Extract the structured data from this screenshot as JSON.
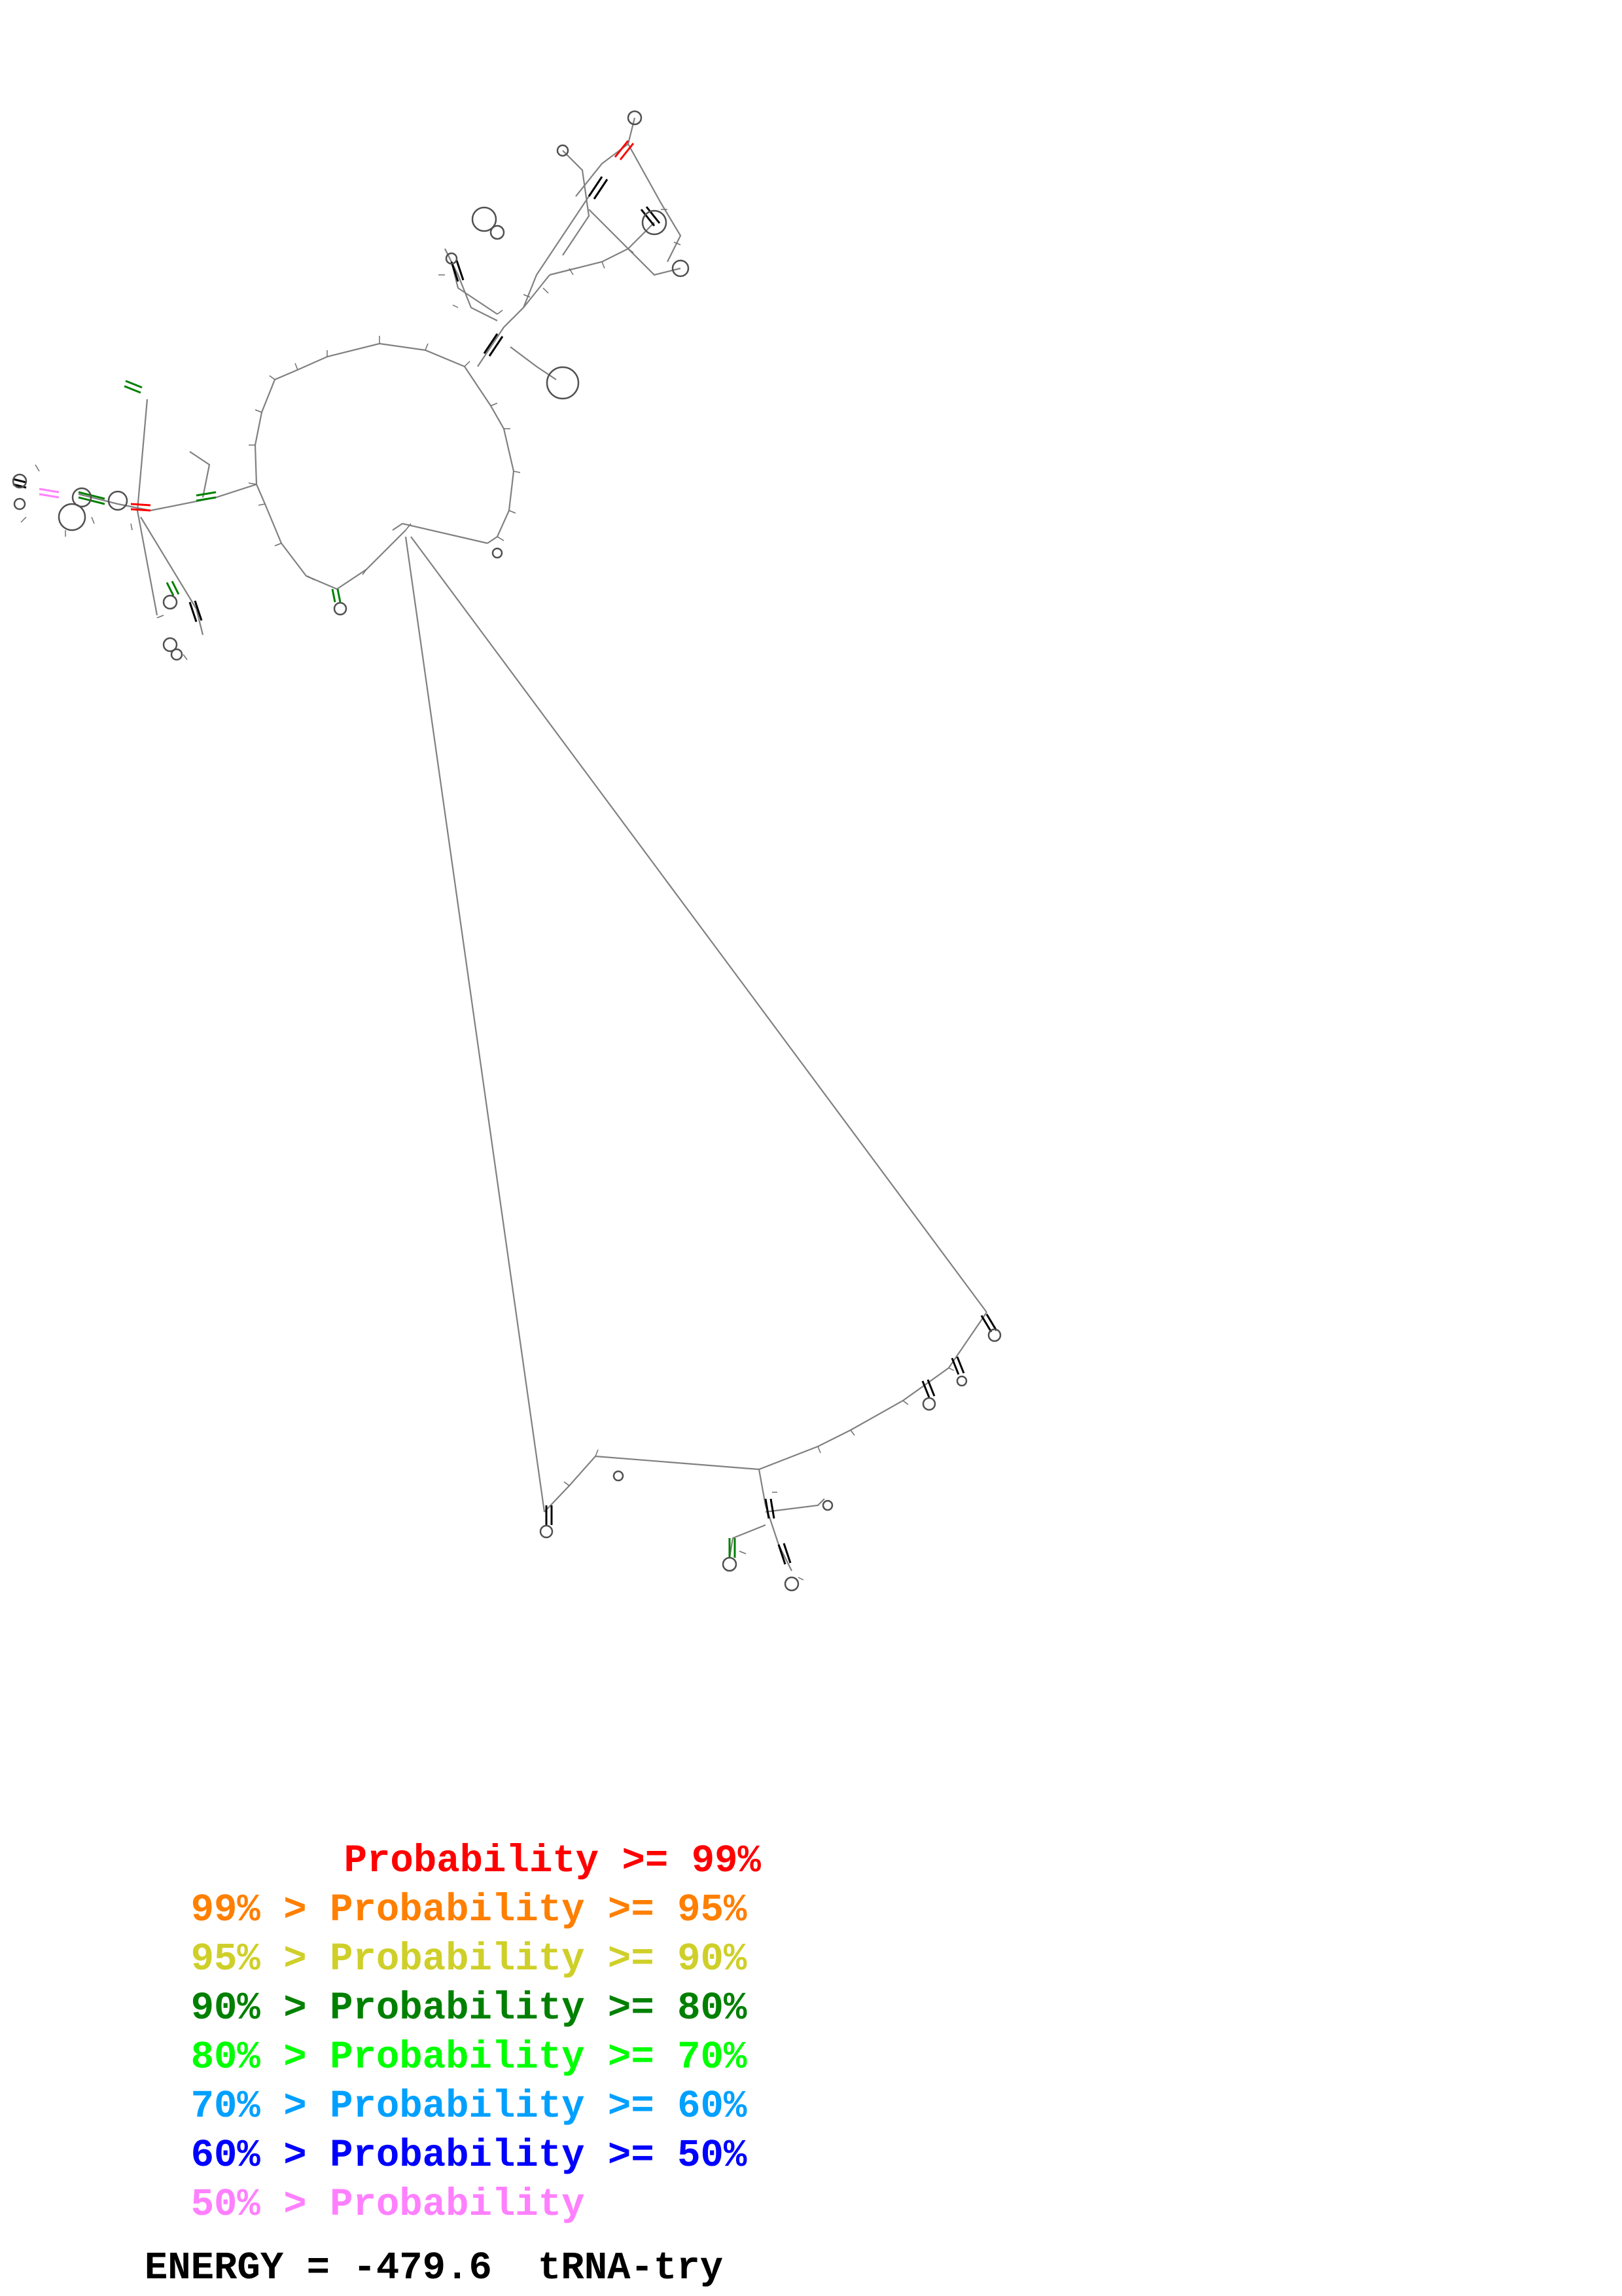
{
  "legend": {
    "items": [
      {
        "prefix": "",
        "label": "Probability >= 99%",
        "color": "#ff0000"
      },
      {
        "prefix": "99% > ",
        "label": "Probability >= 95%",
        "color": "#ff7f00"
      },
      {
        "prefix": "95% > ",
        "label": "Probability >= 90%",
        "color": "#cfcf2a"
      },
      {
        "prefix": "90% > ",
        "label": "Probability >= 80%",
        "color": "#008000"
      },
      {
        "prefix": "80% > ",
        "label": "Probability >= 70%",
        "color": "#00ff00"
      },
      {
        "prefix": "70% > ",
        "label": "Probability >= 60%",
        "color": "#00a0ff"
      },
      {
        "prefix": "60% > ",
        "label": "Probability >= 50%",
        "color": "#0000ff"
      },
      {
        "prefix": "50% > ",
        "label": "Probability",
        "color": "#ff80ff"
      }
    ]
  },
  "footer": {
    "energy_label": "ENERGY = -479.6",
    "sequence_name": "tRNA-try"
  },
  "diagram": {
    "backbone_color": "#808080",
    "pair_color": "#505050",
    "stem_colors": [
      "#000000",
      "#008000",
      "#ff0000",
      "#ff80ff"
    ]
  }
}
